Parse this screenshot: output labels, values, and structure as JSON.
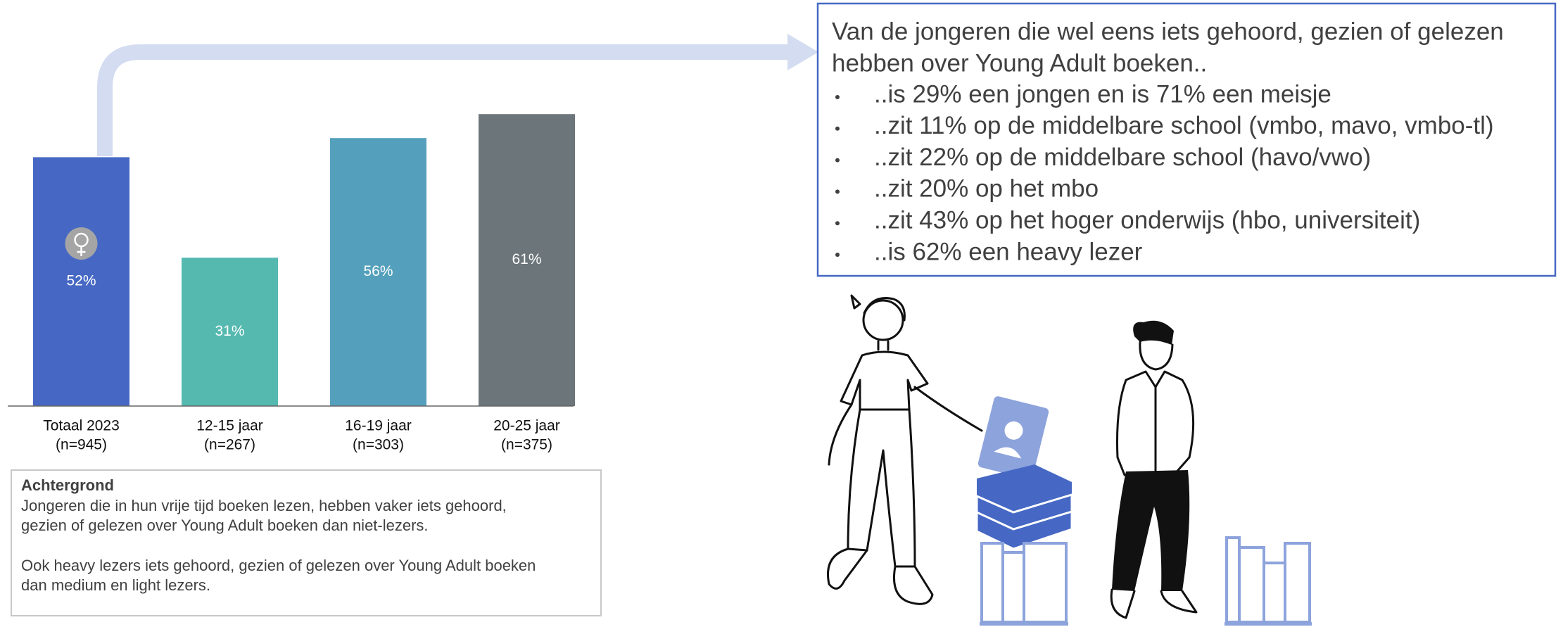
{
  "chart_data": {
    "type": "bar",
    "categories": [
      "Totaal 2023",
      "12-15 jaar",
      "16-19 jaar",
      "20-25 jaar"
    ],
    "category_notes": [
      "(n=945)",
      "(n=267)",
      "(n=303)",
      "(n=375)"
    ],
    "values": [
      52,
      31,
      56,
      61
    ],
    "value_labels": [
      "52%",
      "31%",
      "56%",
      "61%"
    ],
    "colors": [
      "#4668c4",
      "#55b9b0",
      "#54a0bc",
      "#6b757a"
    ]
  },
  "info_box": {
    "title_lines": [
      "Van de jongeren die wel eens iets gehoord, gezien of gelezen",
      "hebben over Young Adult boeken.."
    ],
    "items": [
      "..is 29% een jongen en is 71% een meisje",
      "..zit 11% op de middelbare school (vmbo, mavo, vmbo-tl)",
      "..zit 22% op de middelbare school (havo/vwo)",
      "..zit 20% op het mbo",
      "..zit 43% op het hoger onderwijs (hbo, universiteit)",
      "..is 62% een heavy lezer"
    ]
  },
  "background_box": {
    "title": "Achtergrond",
    "paragraphs": [
      [
        "Jongeren die in hun vrije tijd boeken lezen, hebben vaker iets gehoord,",
        "gezien of gelezen over Young Adult boeken dan niet-lezers."
      ],
      [
        "Ook heavy lezers iets gehoord, gezien of gelezen over Young Adult boeken",
        "dan medium en light lezers."
      ]
    ]
  }
}
